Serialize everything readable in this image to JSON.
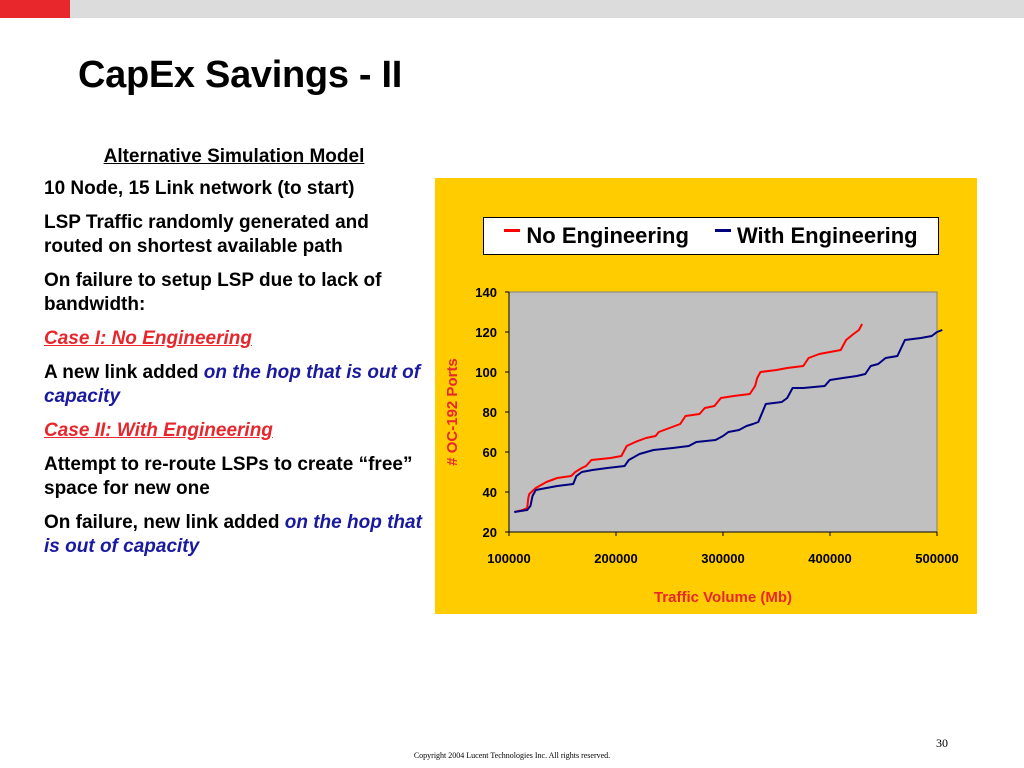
{
  "slide": {
    "title": "CapEx Savings - II",
    "page_number": "30",
    "copyright": "Copyright  2004 Lucent Technologies Inc.  All rights reserved."
  },
  "body": {
    "heading": "Alternative Simulation Model",
    "p1": "10 Node, 15 Link network (to start)",
    "p2": "LSP Traffic randomly generated and routed on shortest available path",
    "p3": "On failure to setup LSP due to lack of bandwidth:",
    "case1": "Case I: No Engineering",
    "p4_a": "A new link added ",
    "p4_b": "on the hop that is out of capacity",
    "case2": "Case II: With Engineering",
    "p5": "Attempt to re-route LSPs to create “free” space for new one",
    "p6_a": "On failure, new link added ",
    "p6_b": "on the hop that is out of capacity"
  },
  "colors": {
    "accent_red": "#e8272d",
    "accent_blue": "#1a1aa0",
    "chart_bg": "#ffcc00",
    "plot_bg": "#c0c0c0",
    "series_no_eng": "#ff0000",
    "series_with_eng": "#000080"
  },
  "chart_data": {
    "type": "line",
    "title": "",
    "xlabel": "Traffic Volume (Mb)",
    "ylabel": "# OC-192 Ports",
    "xlim": [
      100000,
      500000
    ],
    "ylim": [
      20,
      140
    ],
    "x_ticks": [
      "100000",
      "200000",
      "300000",
      "400000",
      "500000"
    ],
    "y_ticks": [
      "20",
      "40",
      "60",
      "80",
      "100",
      "120",
      "140"
    ],
    "grid": false,
    "legend_position": "top",
    "series": [
      {
        "name": "No Engineering",
        "points": [
          [
            105000,
            30
          ],
          [
            113000,
            31
          ],
          [
            117000,
            32
          ],
          [
            118000,
            37
          ],
          [
            119000,
            39
          ],
          [
            125000,
            42
          ],
          [
            135000,
            45
          ],
          [
            145000,
            47
          ],
          [
            158000,
            48
          ],
          [
            162000,
            50
          ],
          [
            168000,
            52
          ],
          [
            172000,
            53
          ],
          [
            177000,
            56
          ],
          [
            195000,
            57
          ],
          [
            205000,
            58
          ],
          [
            210000,
            63
          ],
          [
            218000,
            65
          ],
          [
            228000,
            67
          ],
          [
            237000,
            68
          ],
          [
            240000,
            70
          ],
          [
            250000,
            72
          ],
          [
            260000,
            74
          ],
          [
            265000,
            78
          ],
          [
            278000,
            79
          ],
          [
            283000,
            82
          ],
          [
            292000,
            83
          ],
          [
            298000,
            87
          ],
          [
            310000,
            88
          ],
          [
            325000,
            89
          ],
          [
            330000,
            93
          ],
          [
            332000,
            97
          ],
          [
            335000,
            100
          ],
          [
            350000,
            101
          ],
          [
            360000,
            102
          ],
          [
            375000,
            103
          ],
          [
            380000,
            107
          ],
          [
            390000,
            109
          ],
          [
            410000,
            111
          ],
          [
            415000,
            116
          ],
          [
            422000,
            119
          ],
          [
            427000,
            121
          ],
          [
            430000,
            124
          ]
        ]
      },
      {
        "name": "With Engineering",
        "points": [
          [
            105000,
            30
          ],
          [
            117000,
            31
          ],
          [
            120000,
            33
          ],
          [
            122000,
            38
          ],
          [
            125000,
            41
          ],
          [
            135000,
            42
          ],
          [
            145000,
            43
          ],
          [
            160000,
            44
          ],
          [
            163000,
            48
          ],
          [
            168000,
            50
          ],
          [
            178000,
            51
          ],
          [
            192000,
            52
          ],
          [
            208000,
            53
          ],
          [
            212000,
            56
          ],
          [
            222000,
            59
          ],
          [
            235000,
            61
          ],
          [
            253000,
            62
          ],
          [
            268000,
            63
          ],
          [
            275000,
            65
          ],
          [
            293000,
            66
          ],
          [
            300000,
            68
          ],
          [
            305000,
            70
          ],
          [
            315000,
            71
          ],
          [
            322000,
            73
          ],
          [
            328000,
            74
          ],
          [
            333000,
            75
          ],
          [
            340000,
            84
          ],
          [
            355000,
            85
          ],
          [
            360000,
            87
          ],
          [
            365000,
            92
          ],
          [
            375000,
            92
          ],
          [
            395000,
            93
          ],
          [
            400000,
            96
          ],
          [
            412000,
            97
          ],
          [
            425000,
            98
          ],
          [
            433000,
            99
          ],
          [
            438000,
            103
          ],
          [
            445000,
            104
          ],
          [
            452000,
            107
          ],
          [
            463000,
            108
          ],
          [
            470000,
            116
          ],
          [
            485000,
            117
          ],
          [
            495000,
            118
          ],
          [
            500000,
            120
          ],
          [
            505000,
            121
          ]
        ]
      }
    ]
  }
}
